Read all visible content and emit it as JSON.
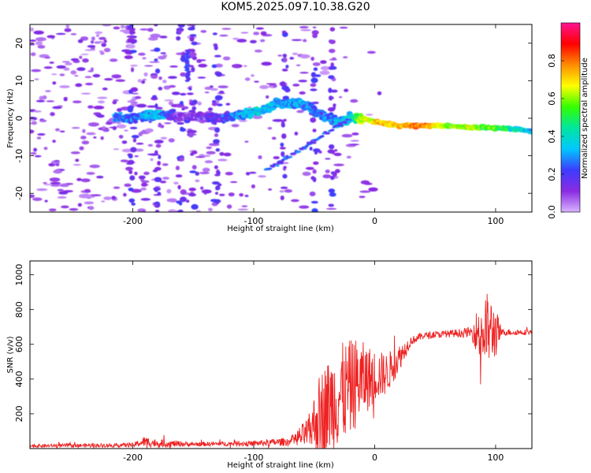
{
  "title": "KOM5.2025.097.10.38.G20",
  "chart_data": [
    {
      "type": "heatmap",
      "xlabel": "Height of straight line (km)",
      "ylabel": "Frequency (Hz)",
      "xlim": [
        -285,
        130
      ],
      "ylim": [
        -25,
        25
      ],
      "x_ticks": [
        -200,
        -100,
        0,
        100
      ],
      "y_ticks": [
        -20,
        -10,
        0,
        10,
        20
      ],
      "colorbar": {
        "label": "Normalized spectral amplitude",
        "range": [
          0,
          1
        ],
        "ticks": [
          0.0,
          0.2,
          0.4,
          0.6,
          0.8
        ],
        "stops": [
          "#d9b3ff",
          "#8a2be2",
          "#3c3cff",
          "#00c8ff",
          "#00e6a0",
          "#33ff00",
          "#ffff00",
          "#ff8c00",
          "#ff0000",
          "#ff1493"
        ]
      },
      "trace": {
        "x": [
          -200,
          -180,
          -160,
          -130,
          -110,
          -95,
          -80,
          -60,
          -45,
          -30,
          -20,
          -10,
          0,
          20,
          40,
          60,
          80,
          100,
          120,
          130
        ],
        "y": [
          0,
          1,
          0.5,
          0,
          1,
          2,
          4,
          4,
          1,
          -1,
          0,
          0,
          -1,
          -2,
          -2,
          -2,
          -2.5,
          -2.5,
          -3,
          -3.5
        ],
        "amp": [
          0.25,
          0.35,
          0.1,
          0.15,
          0.3,
          0.35,
          0.3,
          0.3,
          0.25,
          0.3,
          0.4,
          0.6,
          0.7,
          0.75,
          0.8,
          0.6,
          0.6,
          0.55,
          0.4,
          0.3
        ]
      }
    },
    {
      "type": "line",
      "xlabel": "Height of straight line (km)",
      "ylabel": "SNR (v/v)",
      "xlim": [
        -285,
        130
      ],
      "ylim": [
        0,
        1080
      ],
      "x_ticks": [
        -200,
        -100,
        0,
        100
      ],
      "y_ticks": [
        200,
        400,
        600,
        800,
        1000
      ],
      "color": "#ee2222",
      "envelope": {
        "x": [
          -285,
          -200,
          -190,
          -180,
          -150,
          -100,
          -70,
          -55,
          -45,
          -30,
          -15,
          0,
          10,
          20,
          30,
          40,
          60,
          80,
          90,
          95,
          100,
          105,
          130
        ],
        "mean": [
          15,
          20,
          40,
          30,
          25,
          30,
          40,
          90,
          200,
          300,
          380,
          420,
          430,
          520,
          620,
          650,
          660,
          670,
          680,
          680,
          670,
          670,
          670
        ],
        "noise": [
          10,
          12,
          30,
          25,
          12,
          15,
          25,
          90,
          250,
          300,
          260,
          150,
          120,
          80,
          25,
          20,
          20,
          30,
          250,
          200,
          150,
          20,
          15
        ]
      }
    }
  ]
}
